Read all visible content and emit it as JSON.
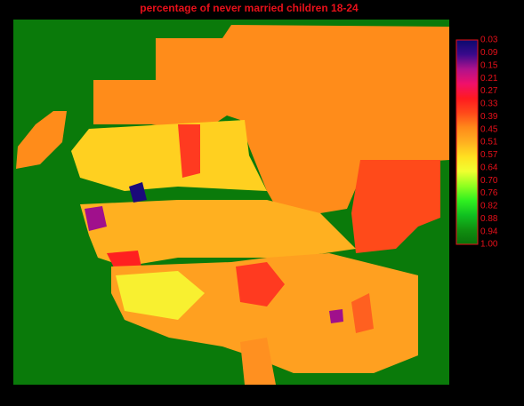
{
  "title": "percentage of never married children 18-24",
  "legend": {
    "labels": [
      "0.03",
      "0.09",
      "0.15",
      "0.21",
      "0.27",
      "0.33",
      "0.39",
      "0.45",
      "0.51",
      "0.57",
      "0.64",
      "0.70",
      "0.76",
      "0.82",
      "0.88",
      "0.94",
      "1.00"
    ],
    "colors": [
      "#0a0a6e",
      "#3a0a8c",
      "#b0128c",
      "#f0106a",
      "#ff1a20",
      "#ff4a1a",
      "#ff8a1a",
      "#ffb020",
      "#ffe020",
      "#f0ff30",
      "#90ff20",
      "#30f020",
      "#10c020",
      "#109010",
      "#0a700a"
    ]
  }
}
